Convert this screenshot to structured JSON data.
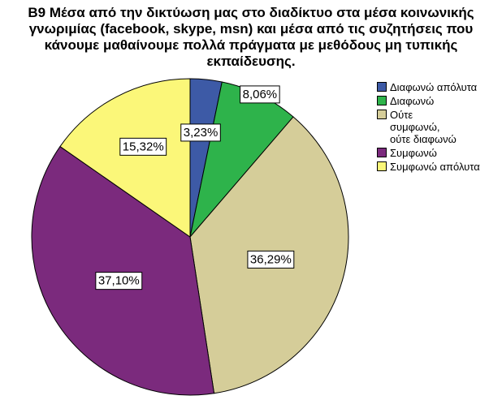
{
  "chart_data": {
    "type": "pie",
    "title": "B9 Μέσα από την δικτύωση μας στο διαδίκτυο στα μέσα κοινωνικής γνωριμίας (facebook, skype, msn) και μέσα από τις συζητήσεις που κάνουμε μαθαίνουμε πολλά πράγματα με μεθόδους μη τυπικής εκπαίδευσης.",
    "categories": [
      "Διαφωνώ απόλυτα",
      "Διαφωνώ",
      "Ούτε συμφωνώ, ούτε διαφωνώ",
      "Συμφωνώ",
      "Συμφωνώ απόλυτα"
    ],
    "values": [
      3.23,
      8.06,
      36.29,
      37.1,
      15.32
    ],
    "value_labels": [
      "3,23%",
      "8,06%",
      "36,29%",
      "37,10%",
      "15,32%"
    ],
    "colors": [
      "#3d5aa6",
      "#2eb34b",
      "#d5cd99",
      "#7b2a7d",
      "#fbf779"
    ],
    "legend": "right"
  }
}
